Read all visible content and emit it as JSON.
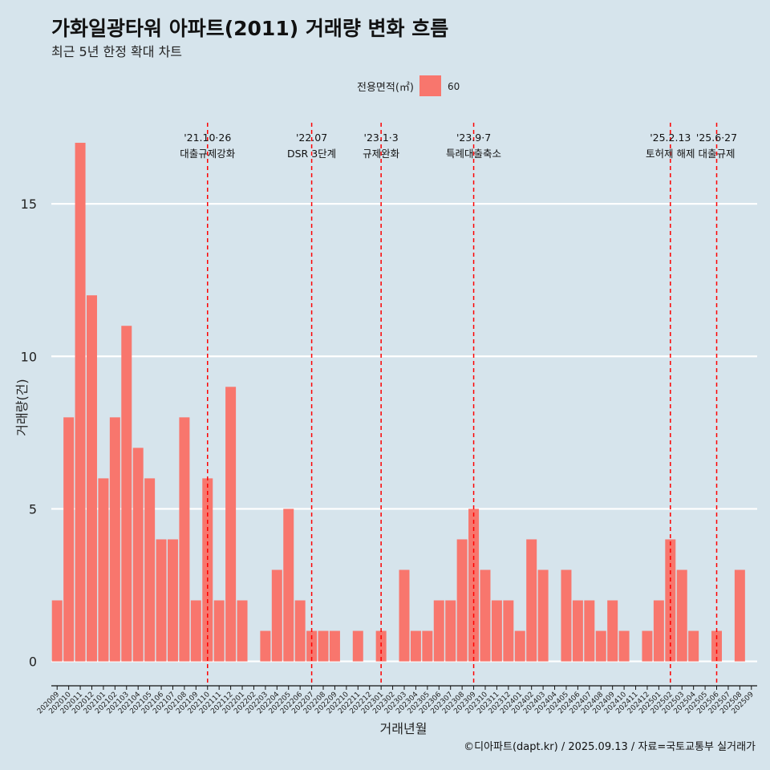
{
  "chart_data": {
    "type": "bar",
    "title": "가화일광타워 아파트(2011) 거래량 변화 흐름",
    "subtitle": "최근 5년 한정 확대 차트",
    "xlabel": "거래년월",
    "ylabel": "거래량(건)",
    "ylim": [
      -0.8,
      18
    ],
    "yticks": [
      0,
      5,
      10,
      15
    ],
    "grid": "horizontal",
    "legend": {
      "title": "전용면적(㎡)",
      "placement": "top-center",
      "entries": [
        {
          "label": "60",
          "color": "#f8766d"
        }
      ]
    },
    "categories": [
      "202009",
      "202010",
      "202011",
      "202012",
      "202101",
      "202102",
      "202103",
      "202104",
      "202105",
      "202106",
      "202107",
      "202108",
      "202109",
      "202110",
      "202111",
      "202112",
      "202201",
      "202202",
      "202203",
      "202204",
      "202205",
      "202206",
      "202207",
      "202208",
      "202209",
      "202210",
      "202211",
      "202212",
      "202301",
      "202302",
      "202303",
      "202304",
      "202305",
      "202306",
      "202307",
      "202308",
      "202309",
      "202310",
      "202311",
      "202312",
      "202401",
      "202402",
      "202403",
      "202404",
      "202405",
      "202406",
      "202407",
      "202408",
      "202409",
      "202410",
      "202411",
      "202412",
      "202501",
      "202502",
      "202503",
      "202504",
      "202505",
      "202506",
      "202507",
      "202508",
      "202509"
    ],
    "series": [
      {
        "color": "#f8766d",
        "values": [
          2,
          8,
          17,
          12,
          6,
          8,
          11,
          7,
          6,
          4,
          4,
          8,
          2,
          6,
          2,
          9,
          2,
          0,
          1,
          3,
          5,
          2,
          1,
          1,
          1,
          0,
          1,
          0,
          1,
          0,
          3,
          1,
          1,
          2,
          2,
          4,
          5,
          3,
          2,
          2,
          1,
          4,
          3,
          0,
          3,
          2,
          2,
          1,
          2,
          1,
          0,
          1,
          2,
          4,
          3,
          1,
          0,
          1,
          0,
          3,
          0
        ]
      }
    ],
    "annotations": [
      {
        "x": "202110",
        "lines": [
          "'21.10·26",
          "대출규제강화"
        ],
        "style": "dashed",
        "color": "#ff0000"
      },
      {
        "x": "202207",
        "lines": [
          "'22.07",
          "DSR 3단계"
        ],
        "style": "dashed",
        "color": "#ff0000"
      },
      {
        "x": "202301",
        "lines": [
          "'23.1·3",
          "규제완화"
        ],
        "style": "dashed",
        "color": "#ff0000"
      },
      {
        "x": "202309",
        "lines": [
          "'23.9·7",
          "특례대출축소"
        ],
        "style": "dashed",
        "color": "#ff0000"
      },
      {
        "x": "202502",
        "lines": [
          "'25.2.13",
          "토허제 해제"
        ],
        "style": "dashed",
        "color": "#ff0000"
      },
      {
        "x": "202506",
        "lines": [
          "'25.6·27",
          "대출규제"
        ],
        "style": "dashed",
        "color": "#ff0000"
      }
    ]
  },
  "caption": "©디아파트(dapt.kr) / 2025.09.13 / 자료=국토교통부 실거래가"
}
